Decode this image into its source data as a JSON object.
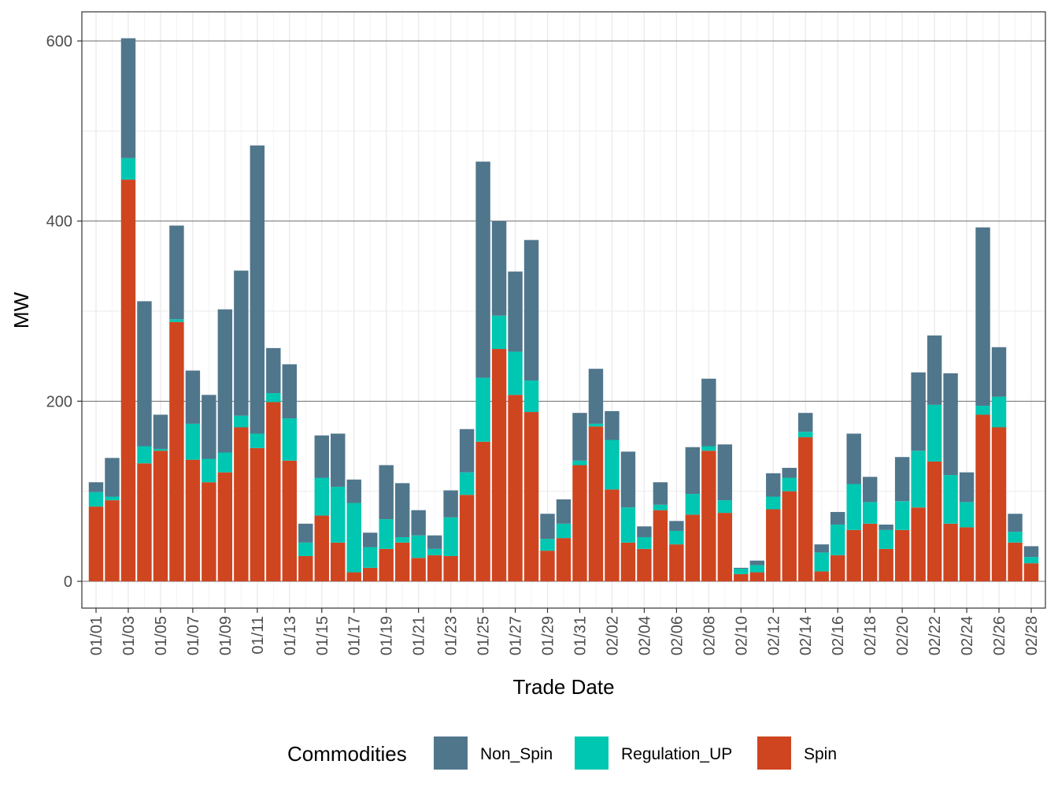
{
  "chart_data": {
    "type": "bar",
    "stacked": true,
    "xlabel": "Trade Date",
    "ylabel": "MW",
    "ylim": [
      -29.5,
      632
    ],
    "yticks": [
      0,
      200,
      400,
      600
    ],
    "grid": true,
    "legend": {
      "title": "Commodities",
      "placement": "bottom"
    },
    "categories": [
      "01/01",
      "01/02",
      "01/03",
      "01/04",
      "01/05",
      "01/06",
      "01/07",
      "01/08",
      "01/09",
      "01/10",
      "01/11",
      "01/12",
      "01/13",
      "01/14",
      "01/15",
      "01/16",
      "01/17",
      "01/18",
      "01/19",
      "01/20",
      "01/21",
      "01/22",
      "01/23",
      "01/24",
      "01/25",
      "01/26",
      "01/27",
      "01/28",
      "01/29",
      "01/30",
      "01/31",
      "02/01",
      "02/02",
      "02/03",
      "02/04",
      "02/05",
      "02/06",
      "02/07",
      "02/08",
      "02/09",
      "02/10",
      "02/11",
      "02/12",
      "02/13",
      "02/14",
      "02/15",
      "02/16",
      "02/17",
      "02/18",
      "02/19",
      "02/20",
      "02/21",
      "02/22",
      "02/23",
      "02/24",
      "02/25",
      "02/26",
      "02/27",
      "02/28"
    ],
    "tick_labels": [
      "01/01",
      "01/03",
      "01/05",
      "01/07",
      "01/09",
      "01/11",
      "01/13",
      "01/15",
      "01/17",
      "01/19",
      "01/21",
      "01/23",
      "01/25",
      "01/27",
      "01/29",
      "01/31",
      "02/02",
      "02/04",
      "02/06",
      "02/08",
      "02/10",
      "02/12",
      "02/14",
      "02/16",
      "02/18",
      "02/20",
      "02/22",
      "02/24",
      "02/26",
      "02/28"
    ],
    "series": [
      {
        "name": "Spin",
        "color": "#CF4520",
        "values": [
          83,
          90,
          446,
          131,
          145,
          288,
          135,
          110,
          121,
          171,
          148,
          199,
          134,
          28,
          73,
          43,
          10,
          15,
          36,
          43,
          26,
          29,
          28,
          96,
          155,
          258,
          207,
          188,
          34,
          48,
          129,
          172,
          102,
          43,
          36,
          79,
          41,
          74,
          145,
          76,
          8,
          10,
          80,
          100,
          160,
          11,
          29,
          57,
          64,
          36,
          57,
          82,
          133,
          64,
          60,
          185,
          171,
          43,
          20
        ]
      },
      {
        "name": "Regulation_UP",
        "color": "#00C7B1",
        "values": [
          16,
          4,
          24,
          19,
          2,
          3,
          40,
          26,
          22,
          13,
          16,
          10,
          47,
          15,
          42,
          62,
          77,
          23,
          33,
          6,
          25,
          7,
          43,
          25,
          71,
          37,
          48,
          35,
          13,
          16,
          5,
          3,
          55,
          39,
          13,
          6,
          15,
          23,
          5,
          14,
          6,
          8,
          14,
          15,
          6,
          21,
          34,
          51,
          24,
          21,
          32,
          63,
          63,
          54,
          28,
          10,
          34,
          12,
          7
        ]
      },
      {
        "name": "Non_Spin",
        "color": "#50768C",
        "values": [
          11,
          43,
          133,
          161,
          38,
          104,
          59,
          71,
          159,
          161,
          320,
          50,
          60,
          21,
          47,
          59,
          26,
          16,
          60,
          60,
          28,
          15,
          30,
          48,
          240,
          105,
          89,
          156,
          28,
          27,
          53,
          61,
          32,
          62,
          12,
          25,
          11,
          52,
          75,
          62,
          1,
          5,
          26,
          11,
          21,
          9,
          14,
          56,
          28,
          6,
          49,
          87,
          77,
          113,
          33,
          198,
          55,
          20,
          12
        ]
      }
    ],
    "legend_order": [
      "Non_Spin",
      "Regulation_UP",
      "Spin"
    ]
  }
}
